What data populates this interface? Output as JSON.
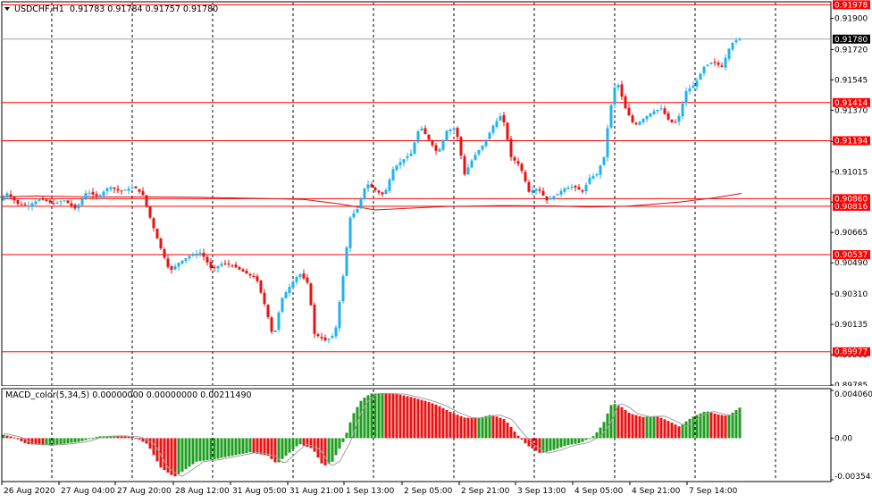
{
  "window": {
    "title": "USDCHF,H1",
    "ohlc": [
      "0.91783",
      "0.91784",
      "0.91757",
      "0.91780"
    ]
  },
  "macd": {
    "label": "MACD_color(5,34,5) 0.00000000 0.00000000 0.00211490",
    "tick_labels": [
      "0.0040608",
      "0.00",
      "-0.003541"
    ]
  },
  "chart_data": [
    {
      "type": "candlestick",
      "symbol": "USDCHF",
      "timeframe": "H1",
      "ylim": [
        0.89785,
        0.9199
      ],
      "y_ticks": [
        "0.91900",
        "0.91720",
        "0.91545",
        "0.91370",
        "0.91190",
        "0.91015",
        "0.90840",
        "0.90665",
        "0.90490",
        "0.90310",
        "0.90135",
        "0.89960",
        "0.89785"
      ],
      "x_ticks": [
        "26 Aug 2020",
        "27 Aug 04:00",
        "27 Aug 20:00",
        "28 Aug 12:00",
        "31 Aug 05:00",
        "31 Aug 21:00",
        "1 Sep 13:00",
        "2 Sep 05:00",
        "2 Sep 21:00",
        "3 Sep 13:00",
        "4 Sep 05:00",
        "4 Sep 21:00",
        "7 Sep 14:00"
      ],
      "current_price": "0.91780",
      "horizontal_levels": [
        "0.91978",
        "0.91414",
        "0.91194",
        "0.90860",
        "0.90816",
        "0.90537",
        "0.89977"
      ],
      "up_color": "#1fb2ee",
      "down_color": "#e81212",
      "level_color": "#ff0000",
      "moving_average_color": "#cc1414",
      "candle_anchors": [
        [
          0,
          0.9085
        ],
        [
          8,
          0.9089
        ],
        [
          20,
          0.9083
        ],
        [
          32,
          0.9082
        ],
        [
          45,
          0.9086
        ],
        [
          60,
          0.9083
        ],
        [
          72,
          0.9085
        ],
        [
          85,
          0.908
        ],
        [
          97,
          0.909
        ],
        [
          110,
          0.9087
        ],
        [
          122,
          0.9093
        ],
        [
          135,
          0.909
        ],
        [
          150,
          0.9093
        ],
        [
          160,
          0.9088
        ],
        [
          168,
          0.9075
        ],
        [
          178,
          0.906
        ],
        [
          190,
          0.9044
        ],
        [
          200,
          0.9049
        ],
        [
          212,
          0.9053
        ],
        [
          225,
          0.9055
        ],
        [
          237,
          0.9045
        ],
        [
          250,
          0.9049
        ],
        [
          262,
          0.9047
        ],
        [
          275,
          0.9043
        ],
        [
          287,
          0.904
        ],
        [
          298,
          0.9022
        ],
        [
          306,
          0.9005
        ],
        [
          315,
          0.9028
        ],
        [
          325,
          0.9036
        ],
        [
          335,
          0.9043
        ],
        [
          345,
          0.9037
        ],
        [
          352,
          0.9008
        ],
        [
          365,
          0.9004
        ],
        [
          375,
          0.9008
        ],
        [
          385,
          0.9045
        ],
        [
          392,
          0.9075
        ],
        [
          400,
          0.908
        ],
        [
          410,
          0.9095
        ],
        [
          422,
          0.909
        ],
        [
          430,
          0.9088
        ],
        [
          440,
          0.9103
        ],
        [
          450,
          0.9108
        ],
        [
          460,
          0.9112
        ],
        [
          470,
          0.9128
        ],
        [
          480,
          0.912
        ],
        [
          490,
          0.9112
        ],
        [
          500,
          0.9125
        ],
        [
          510,
          0.9127
        ],
        [
          520,
          0.91
        ],
        [
          530,
          0.911
        ],
        [
          542,
          0.9118
        ],
        [
          552,
          0.9128
        ],
        [
          562,
          0.9135
        ],
        [
          572,
          0.911
        ],
        [
          582,
          0.9105
        ],
        [
          592,
          0.909
        ],
        [
          602,
          0.9092
        ],
        [
          612,
          0.9085
        ],
        [
          622,
          0.9088
        ],
        [
          632,
          0.9092
        ],
        [
          642,
          0.9093
        ],
        [
          652,
          0.909
        ],
        [
          660,
          0.9098
        ],
        [
          668,
          0.91
        ],
        [
          676,
          0.911
        ],
        [
          682,
          0.9135
        ],
        [
          690,
          0.9155
        ],
        [
          700,
          0.9138
        ],
        [
          710,
          0.9128
        ],
        [
          720,
          0.9132
        ],
        [
          730,
          0.9136
        ],
        [
          740,
          0.9138
        ],
        [
          750,
          0.913
        ],
        [
          758,
          0.913
        ],
        [
          768,
          0.9148
        ],
        [
          778,
          0.9152
        ],
        [
          788,
          0.9162
        ],
        [
          798,
          0.9165
        ],
        [
          808,
          0.9162
        ],
        [
          818,
          0.9175
        ],
        [
          826,
          0.9178
        ]
      ],
      "moving_average": [
        [
          0,
          0.9087
        ],
        [
          40,
          0.90875
        ],
        [
          100,
          0.9087
        ],
        [
          160,
          0.9087
        ],
        [
          220,
          0.90868
        ],
        [
          300,
          0.9086
        ],
        [
          340,
          0.90855
        ],
        [
          380,
          0.9083
        ],
        [
          420,
          0.90795
        ],
        [
          460,
          0.90805
        ],
        [
          500,
          0.90815
        ],
        [
          560,
          0.9082
        ],
        [
          620,
          0.90818
        ],
        [
          660,
          0.90812
        ],
        [
          700,
          0.90816
        ],
        [
          760,
          0.9084
        ],
        [
          800,
          0.90865
        ],
        [
          830,
          0.9089
        ]
      ]
    },
    {
      "type": "bar",
      "name": "MACD_color(5,34,5)",
      "ylim": [
        -0.003541,
        0.0040608
      ],
      "rising_color": "#1e9e1e",
      "falling_color": "#e81212",
      "signal_color": "#a0a0a0",
      "anchors": [
        [
          0,
          0.00035
        ],
        [
          15,
          0.0001
        ],
        [
          30,
          -0.0005
        ],
        [
          50,
          -0.0006
        ],
        [
          70,
          -0.0005
        ],
        [
          90,
          -0.0003
        ],
        [
          110,
          0.00015
        ],
        [
          130,
          0.0002
        ],
        [
          150,
          0.0001
        ],
        [
          165,
          -0.0005
        ],
        [
          180,
          -0.0025
        ],
        [
          195,
          -0.0033
        ],
        [
          205,
          -0.0028
        ],
        [
          220,
          -0.002
        ],
        [
          240,
          -0.0018
        ],
        [
          260,
          -0.0015
        ],
        [
          280,
          -0.0012
        ],
        [
          300,
          -0.0015
        ],
        [
          310,
          -0.0022
        ],
        [
          320,
          -0.0015
        ],
        [
          335,
          -0.0005
        ],
        [
          350,
          -0.0009
        ],
        [
          362,
          -0.0024
        ],
        [
          372,
          -0.002
        ],
        [
          385,
          -0.0002
        ],
        [
          395,
          0.002
        ],
        [
          405,
          0.0033
        ],
        [
          415,
          0.0038
        ],
        [
          430,
          0.0038
        ],
        [
          445,
          0.00375
        ],
        [
          460,
          0.0035
        ],
        [
          475,
          0.0032
        ],
        [
          490,
          0.0028
        ],
        [
          505,
          0.0022
        ],
        [
          520,
          0.00175
        ],
        [
          535,
          0.0017
        ],
        [
          550,
          0.002
        ],
        [
          565,
          0.0016
        ],
        [
          580,
          0.0002
        ],
        [
          590,
          -0.0006
        ],
        [
          605,
          -0.0013
        ],
        [
          620,
          -0.001
        ],
        [
          635,
          -0.0006
        ],
        [
          650,
          -0.0004
        ],
        [
          665,
          0.0002
        ],
        [
          675,
          0.0012
        ],
        [
          685,
          0.003
        ],
        [
          695,
          0.0027
        ],
        [
          705,
          0.0021
        ],
        [
          720,
          0.0018
        ],
        [
          735,
          0.0019
        ],
        [
          750,
          0.0014
        ],
        [
          760,
          0.001
        ],
        [
          775,
          0.0018
        ],
        [
          790,
          0.0023
        ],
        [
          805,
          0.002
        ],
        [
          815,
          0.0019
        ],
        [
          828,
          0.0026
        ]
      ]
    }
  ]
}
